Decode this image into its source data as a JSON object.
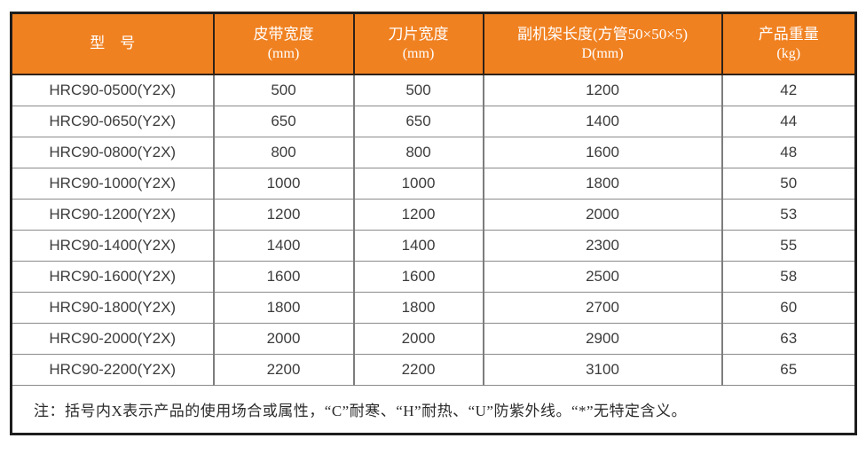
{
  "colors": {
    "header_bg": "#f08121",
    "header_text": "#ffffff",
    "body_text": "#3c3c3c",
    "outer_border": "#1d1d1d",
    "grid_line": "#7d7d7d"
  },
  "table": {
    "header": [
      {
        "line1": "型　号",
        "line2": ""
      },
      {
        "line1": "皮带宽度",
        "line2": "(mm)"
      },
      {
        "line1": "刀片宽度",
        "line2": "(mm)"
      },
      {
        "line1": "副机架长度(方管50×50×5)",
        "line2": "D(mm)"
      },
      {
        "line1": "产品重量",
        "line2": "(kg)"
      }
    ],
    "rows": [
      [
        "HRC90-0500(Y2X)",
        "500",
        "500",
        "1200",
        "42"
      ],
      [
        "HRC90-0650(Y2X)",
        "650",
        "650",
        "1400",
        "44"
      ],
      [
        "HRC90-0800(Y2X)",
        "800",
        "800",
        "1600",
        "48"
      ],
      [
        "HRC90-1000(Y2X)",
        "1000",
        "1000",
        "1800",
        "50"
      ],
      [
        "HRC90-1200(Y2X)",
        "1200",
        "1200",
        "2000",
        "53"
      ],
      [
        "HRC90-1400(Y2X)",
        "1400",
        "1400",
        "2300",
        "55"
      ],
      [
        "HRC90-1600(Y2X)",
        "1600",
        "1600",
        "2500",
        "58"
      ],
      [
        "HRC90-1800(Y2X)",
        "1800",
        "1800",
        "2700",
        "60"
      ],
      [
        "HRC90-2000(Y2X)",
        "2000",
        "2000",
        "2900",
        "63"
      ],
      [
        "HRC90-2200(Y2X)",
        "2200",
        "2200",
        "3100",
        "65"
      ]
    ],
    "note": "注：括号内X表示产品的使用场合或属性，“C”耐寒、“H”耐热、“U”防紫外线。“*”无特定含义。"
  }
}
